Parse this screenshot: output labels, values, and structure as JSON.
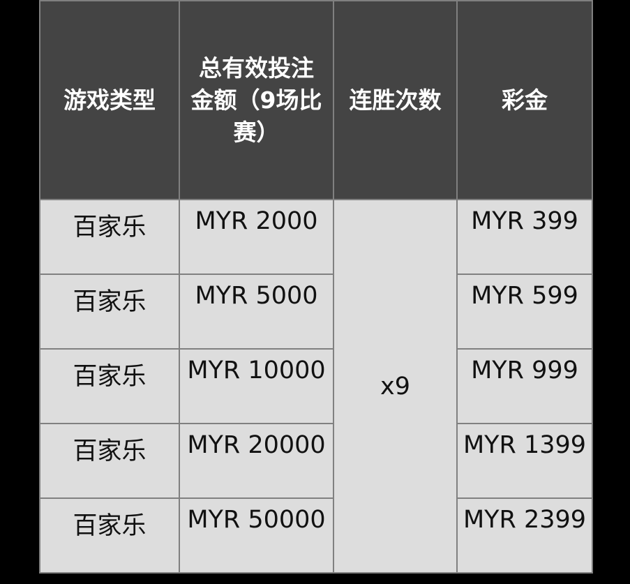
{
  "headers": [
    "游戏类型",
    "总有效投注金额（9场比赛）",
    "连胜次数",
    "彩金"
  ],
  "streak": "x9",
  "rows": [
    {
      "game": "百家乐",
      "bet": "MYR 2000",
      "bonus": "MYR 399"
    },
    {
      "game": "百家乐",
      "bet": "MYR 5000",
      "bonus": "MYR 599"
    },
    {
      "game": "百家乐",
      "bet": "MYR 10000",
      "bonus": "MYR 999"
    },
    {
      "game": "百家乐",
      "bet": "MYR 20000",
      "bonus": "MYR 1399"
    },
    {
      "game": "百家乐",
      "bet": "MYR 50000",
      "bonus": "MYR 2399"
    }
  ]
}
